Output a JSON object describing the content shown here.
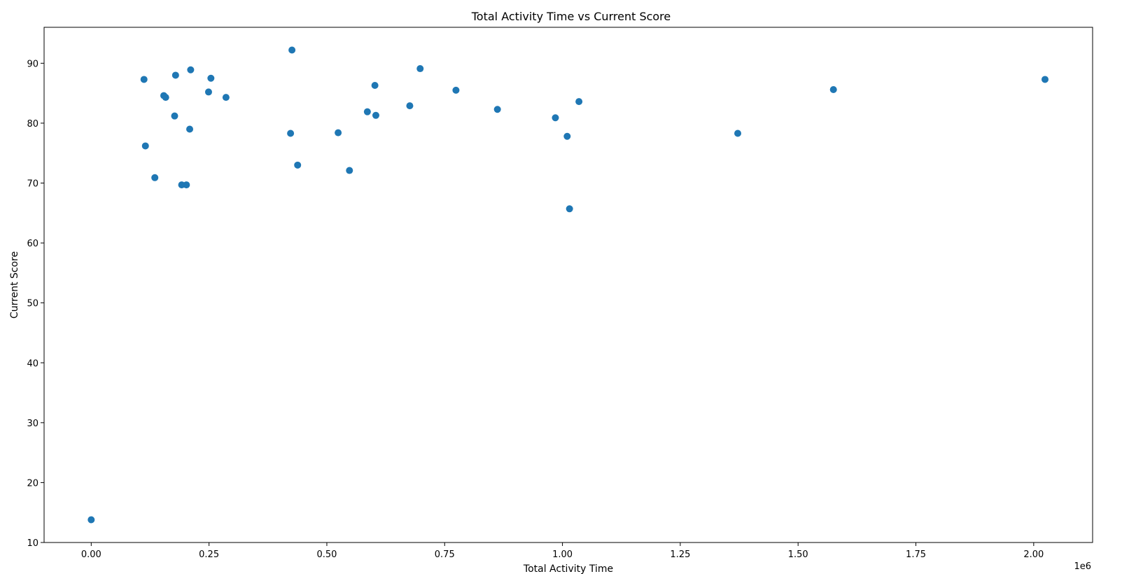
{
  "chart_data": {
    "type": "scatter",
    "title": "Total Activity Time vs Current Score",
    "xlabel": "Total Activity Time",
    "ylabel": "Current Score",
    "x_offset_label": "1e6",
    "x_multiplier": 1000000,
    "xlim": [
      -100000,
      2125000
    ],
    "ylim": [
      10,
      96
    ],
    "x_ticks": [
      0,
      250000,
      500000,
      750000,
      1000000,
      1250000,
      1500000,
      1750000,
      2000000
    ],
    "x_tick_labels": [
      "0.00",
      "0.25",
      "0.50",
      "0.75",
      "1.00",
      "1.25",
      "1.50",
      "1.75",
      "2.00"
    ],
    "y_ticks": [
      10,
      20,
      30,
      40,
      50,
      60,
      70,
      80,
      90
    ],
    "y_tick_labels": [
      "10",
      "20",
      "30",
      "40",
      "50",
      "60",
      "70",
      "80",
      "90"
    ],
    "grid": false,
    "legend": "none",
    "marker_color": "#1f77b4",
    "points": [
      {
        "x": 0,
        "y": 13.8
      },
      {
        "x": 112000,
        "y": 87.3
      },
      {
        "x": 115000,
        "y": 76.2
      },
      {
        "x": 135000,
        "y": 70.9
      },
      {
        "x": 154000,
        "y": 84.6
      },
      {
        "x": 158000,
        "y": 84.3
      },
      {
        "x": 177000,
        "y": 81.2
      },
      {
        "x": 179000,
        "y": 88.0
      },
      {
        "x": 192000,
        "y": 69.7
      },
      {
        "x": 202000,
        "y": 69.7
      },
      {
        "x": 209000,
        "y": 79.0
      },
      {
        "x": 211000,
        "y": 88.9
      },
      {
        "x": 249000,
        "y": 85.2
      },
      {
        "x": 254000,
        "y": 87.5
      },
      {
        "x": 286000,
        "y": 84.3
      },
      {
        "x": 423000,
        "y": 78.3
      },
      {
        "x": 426000,
        "y": 92.2
      },
      {
        "x": 438000,
        "y": 73.0
      },
      {
        "x": 524000,
        "y": 78.4
      },
      {
        "x": 548000,
        "y": 72.1
      },
      {
        "x": 586000,
        "y": 81.9
      },
      {
        "x": 602000,
        "y": 86.3
      },
      {
        "x": 604000,
        "y": 81.3
      },
      {
        "x": 676000,
        "y": 82.9
      },
      {
        "x": 698000,
        "y": 89.1
      },
      {
        "x": 774000,
        "y": 85.5
      },
      {
        "x": 862000,
        "y": 82.3
      },
      {
        "x": 985000,
        "y": 80.9
      },
      {
        "x": 1010000,
        "y": 77.8
      },
      {
        "x": 1015000,
        "y": 65.7
      },
      {
        "x": 1035000,
        "y": 83.6
      },
      {
        "x": 1372000,
        "y": 78.3
      },
      {
        "x": 1575000,
        "y": 85.6
      },
      {
        "x": 2024000,
        "y": 87.3
      }
    ]
  }
}
